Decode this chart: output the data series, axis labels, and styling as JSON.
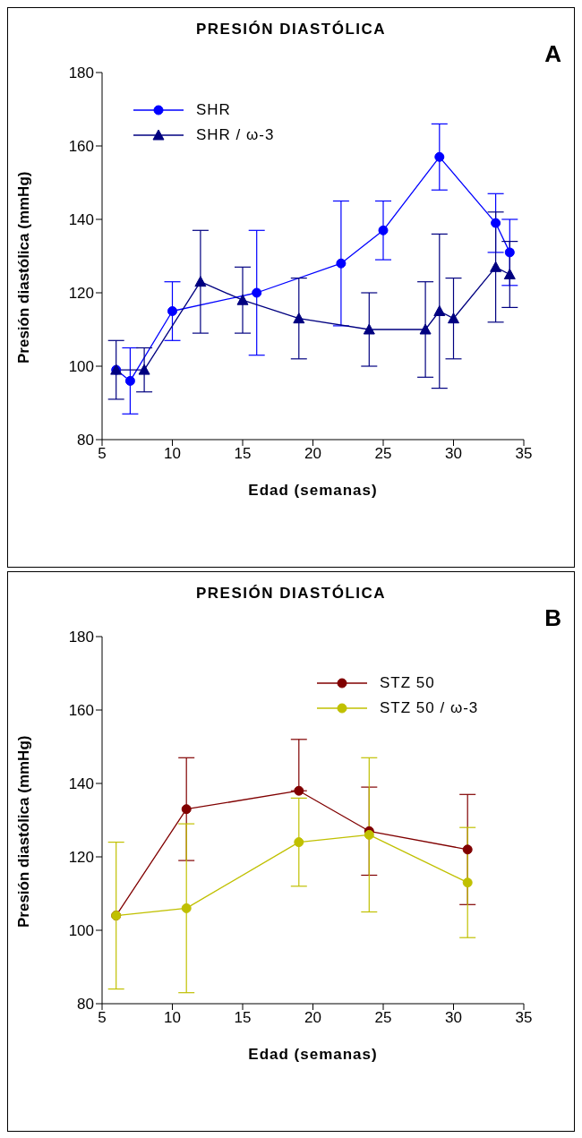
{
  "chart_data": [
    {
      "type": "line",
      "title": "PRESIÓN DIASTÓLICA",
      "xlabel": "Edad (semanas)",
      "ylabel": "Presión diastólica (mmHg)",
      "annotations": [
        "A"
      ],
      "xlim": [
        5,
        35
      ],
      "xticks": [
        5,
        10,
        15,
        20,
        25,
        30,
        35
      ],
      "ylim": [
        80,
        180
      ],
      "yticks": [
        80,
        100,
        120,
        140,
        160,
        180
      ],
      "legend": "top left",
      "series": [
        {
          "name": "SHR",
          "color": "#0000ff",
          "marker": "circle",
          "x": [
            6,
            7,
            10,
            16,
            22,
            25,
            29,
            33,
            34
          ],
          "values": [
            99,
            96,
            115,
            120,
            128,
            137,
            157,
            139,
            131
          ],
          "errors": [
            null,
            [
              87,
              105
            ],
            [
              107,
              123
            ],
            [
              103,
              137
            ],
            [
              111,
              145
            ],
            [
              129,
              145
            ],
            [
              148,
              166
            ],
            [
              131,
              147
            ],
            [
              122,
              140
            ]
          ]
        },
        {
          "name": "SHR / ω-3",
          "color": "#000080",
          "marker": "triangle",
          "x": [
            6,
            8,
            12,
            15,
            19,
            24,
            28,
            29,
            30,
            33,
            34
          ],
          "values": [
            99,
            99,
            123,
            118,
            113,
            110,
            110,
            115,
            113,
            127,
            125
          ],
          "errors": [
            [
              91,
              107
            ],
            [
              93,
              105
            ],
            [
              109,
              137
            ],
            [
              109,
              127
            ],
            [
              102,
              124
            ],
            [
              100,
              120
            ],
            [
              97,
              123
            ],
            [
              94,
              136
            ],
            [
              102,
              124
            ],
            [
              112,
              142
            ],
            [
              116,
              134
            ]
          ]
        }
      ]
    },
    {
      "type": "line",
      "title": "PRESIÓN DIASTÓLICA",
      "xlabel": "Edad (semanas)",
      "ylabel": "Presión diastólica (mmHg)",
      "annotations": [
        "B"
      ],
      "xlim": [
        5,
        35
      ],
      "xticks": [
        5,
        10,
        15,
        20,
        25,
        30,
        35
      ],
      "ylim": [
        80,
        180
      ],
      "yticks": [
        80,
        100,
        120,
        140,
        160,
        180
      ],
      "legend": "top right",
      "x": [
        6,
        11,
        19,
        24,
        31
      ],
      "series": [
        {
          "name": "STZ 50",
          "color": "#800000",
          "marker": "circle",
          "values": [
            104,
            133,
            138,
            127,
            122
          ],
          "errors": [
            null,
            [
              119,
              147
            ],
            [
              138,
              152
            ],
            [
              115,
              139
            ],
            [
              107,
              137
            ]
          ]
        },
        {
          "name": "STZ 50 / ω-3",
          "color": "#c0c000",
          "marker": "circle",
          "values": [
            104,
            106,
            124,
            126,
            113
          ],
          "errors": [
            [
              84,
              124
            ],
            [
              83,
              129
            ],
            [
              112,
              136
            ],
            [
              105,
              147
            ],
            [
              98,
              128
            ]
          ]
        }
      ]
    }
  ]
}
